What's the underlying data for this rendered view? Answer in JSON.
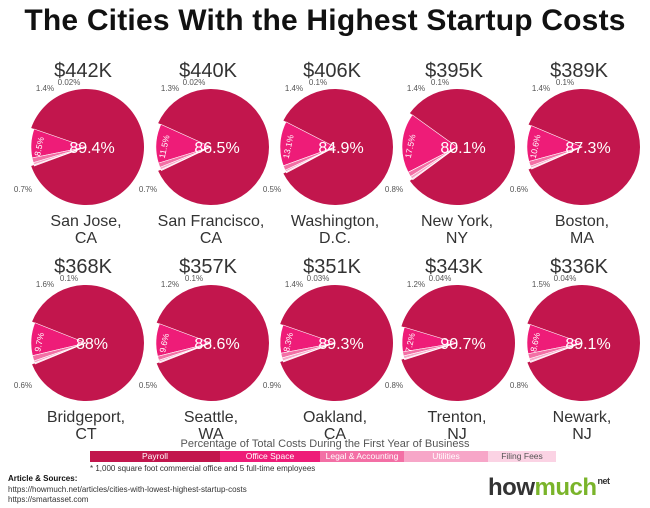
{
  "title": "The Cities With the Highest Startup Costs",
  "colors": {
    "payroll": "#c2164d",
    "office": "#ee1c78",
    "legal": "#f36fa5",
    "utilities": "#f7a6c8",
    "filing": "#fbd3e4"
  },
  "chart_data": {
    "type": "pie",
    "title": "The Cities With the Highest Startup Costs",
    "categories": [
      "Payroll",
      "Office Space",
      "Legal & Accounting",
      "Utilities",
      "Filing Fees"
    ],
    "cities": [
      {
        "name": "San Jose, CA",
        "line1": "San Jose,",
        "line2": "CA",
        "total": "$442K",
        "values": [
          89.4,
          8.5,
          1.4,
          0.7,
          0.02
        ],
        "labels": [
          "89.4%",
          "8.5%",
          "1.4%",
          "0.7%",
          "0.02%"
        ]
      },
      {
        "name": "San Francisco, CA",
        "line1": "San Francisco,",
        "line2": "CA",
        "total": "$440K",
        "values": [
          86.5,
          11.5,
          1.3,
          0.7,
          0.02
        ],
        "labels": [
          "86.5%",
          "11.5%",
          "1.3%",
          "0.7%",
          "0.02%"
        ]
      },
      {
        "name": "Washington, D.C.",
        "line1": "Washington,",
        "line2": "D.C.",
        "total": "$406K",
        "values": [
          84.9,
          13.1,
          1.4,
          0.5,
          0.1
        ],
        "labels": [
          "84.9%",
          "13.1%",
          "1.4%",
          "0.5%",
          "0.1%"
        ]
      },
      {
        "name": "New York, NY",
        "line1": "New York,",
        "line2": "NY",
        "total": "$395K",
        "values": [
          80.1,
          17.5,
          1.4,
          0.8,
          0.1
        ],
        "labels": [
          "80.1%",
          "17.5%",
          "1.4%",
          "0.8%",
          "0.1%"
        ]
      },
      {
        "name": "Boston, MA",
        "line1": "Boston,",
        "line2": "MA",
        "total": "$389K",
        "values": [
          87.3,
          10.6,
          1.4,
          0.6,
          0.1
        ],
        "labels": [
          "87.3%",
          "10.6%",
          "1.4%",
          "0.6%",
          "0.1%"
        ]
      },
      {
        "name": "Bridgeport, CT",
        "line1": "Bridgeport,",
        "line2": "CT",
        "total": "$368K",
        "values": [
          88,
          9.7,
          1.6,
          0.6,
          0.1
        ],
        "labels": [
          "88%",
          "9.7%",
          "1.6%",
          "0.6%",
          "0.1%"
        ]
      },
      {
        "name": "Seattle, WA",
        "line1": "Seattle,",
        "line2": "WA",
        "total": "$357K",
        "values": [
          88.6,
          9.6,
          1.2,
          0.5,
          0.1
        ],
        "labels": [
          "88.6%",
          "9.6%",
          "1.2%",
          "0.5%",
          "0.1%"
        ]
      },
      {
        "name": "Oakland, CA",
        "line1": "Oakland,",
        "line2": "CA",
        "total": "$351K",
        "values": [
          89.3,
          8.3,
          1.4,
          0.9,
          0.03
        ],
        "labels": [
          "89.3%",
          "8.3%",
          "1.4%",
          "0.9%",
          "0.03%"
        ]
      },
      {
        "name": "Trenton, NJ",
        "line1": "Trenton,",
        "line2": "NJ",
        "total": "$343K",
        "values": [
          90.7,
          7.2,
          1.2,
          0.8,
          0.04
        ],
        "labels": [
          "90.7%",
          "7.2%",
          "1.2%",
          "0.8%",
          "0.04%"
        ]
      },
      {
        "name": "Newark, NJ",
        "line1": "Newark,",
        "line2": "NJ",
        "total": "$336K",
        "values": [
          89.1,
          8.6,
          1.5,
          0.8,
          0.04
        ],
        "labels": [
          "89.1%",
          "8.6%",
          "1.5%",
          "0.8%",
          "0.04%"
        ]
      }
    ]
  },
  "legend": {
    "title": "Percentage of Total Costs During the First Year of Business",
    "items": [
      "Payroll",
      "Office Space",
      "Legal & Accounting",
      "Utilities",
      "Filing Fees"
    ]
  },
  "footnote": "* 1,000 square foot commercial office and 5 full-time employees",
  "sources": {
    "heading": "Article & Sources:",
    "links": [
      "https://howmuch.net/articles/cities-with-lowest-highest-startup-costs",
      "https://smartasset.com"
    ]
  },
  "logo": {
    "how": "how",
    "much": "much",
    "net": "net"
  }
}
